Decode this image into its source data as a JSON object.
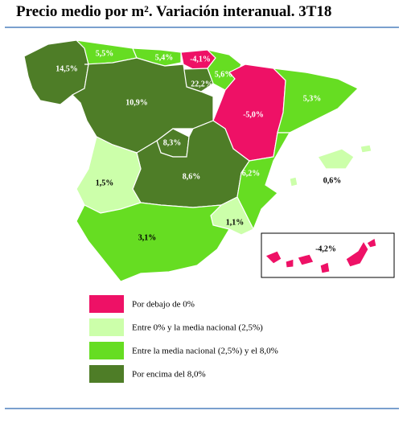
{
  "title": "Precio medio por m². Variación interanual.  3T18",
  "regions": [
    {
      "label": "14,5%",
      "color": "#4e7d27"
    },
    {
      "label": "5,5%",
      "color": "#66dd22"
    },
    {
      "label": "5,4%",
      "color": "#66dd22"
    },
    {
      "label": "-4,1%",
      "color": "#ee1166"
    },
    {
      "label": "5,6%",
      "color": "#66dd22"
    },
    {
      "label": "22,2%",
      "color": "#4e7d27"
    },
    {
      "label": "-5,0%",
      "color": "#ee1166"
    },
    {
      "label": "5,3%",
      "color": "#66dd22"
    },
    {
      "label": "10,9%",
      "color": "#4e7d27"
    },
    {
      "label": "8,3%",
      "color": "#4e7d27"
    },
    {
      "label": "8,6%",
      "color": "#4e7d27"
    },
    {
      "label": "1,5%",
      "color": "#ccffaa"
    },
    {
      "label": "6,2%",
      "color": "#66dd22"
    },
    {
      "label": "1,1%",
      "color": "#ccffaa"
    },
    {
      "label": "3,1%",
      "color": "#66dd22"
    },
    {
      "label": "0,6%",
      "color": "#ccffaa"
    },
    {
      "label": "-4,2%",
      "color": "#ee1166"
    }
  ],
  "legend": [
    {
      "label": "Por debajo de 0%",
      "color": "#ee1166"
    },
    {
      "label": "Entre 0%  y la media nacional (2,5%)",
      "color": "#ccffaa"
    },
    {
      "label": "Entre la media nacional  (2,5%) y el 8,0%",
      "color": "#66dd22"
    },
    {
      "label": "Por encima del 8,0%",
      "color": "#4e7d27"
    }
  ]
}
